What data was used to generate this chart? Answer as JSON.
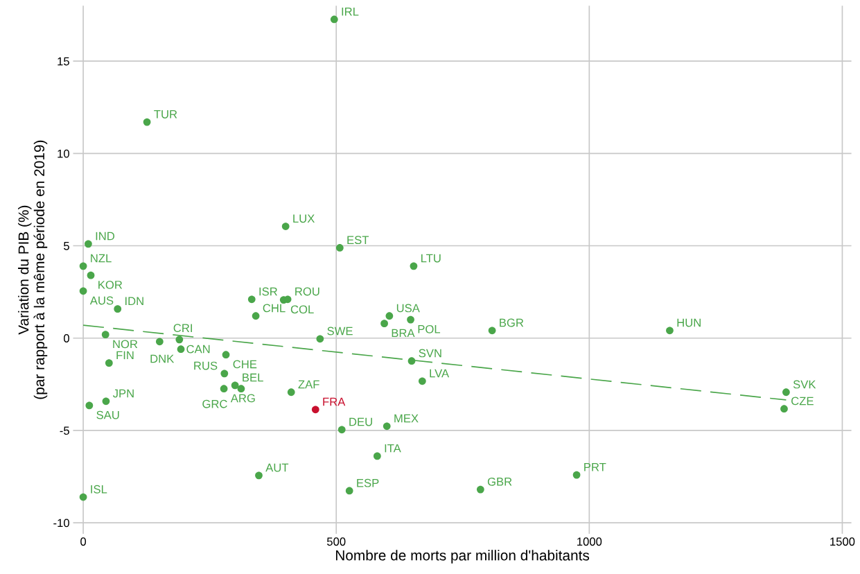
{
  "chart_data": {
    "type": "scatter",
    "xlabel": "Nombre de morts par million d'habitants",
    "ylabel": "Variation du PIB (%)\n(par rapport à la même période en 2019)",
    "xlim": [
      -20,
      1518
    ],
    "ylim": [
      -10.6,
      18
    ],
    "xticks": [
      0,
      500,
      1000,
      1500
    ],
    "yticks": [
      {
        "value": -10,
        "label": "-10"
      },
      {
        "value": -5,
        "label": "-5"
      },
      0,
      5,
      10,
      15
    ],
    "grid": true,
    "marker": "circle",
    "legend": false,
    "series": [
      {
        "color": "#4aa64a",
        "x": [
          496,
          126,
          400,
          507,
          10,
          0,
          15,
          0,
          68,
          44,
          151,
          190,
          193,
          51,
          12,
          45,
          282,
          279,
          278,
          300,
          312,
          333,
          396,
          404,
          341,
          468,
          411,
          595,
          605,
          647,
          649,
          670,
          653,
          808,
          1159,
          1389,
          1385,
          511,
          600,
          581,
          347,
          526,
          785,
          975,
          0
        ],
        "values": [
          17.26,
          11.7,
          6.05,
          4.89,
          5.1,
          3.9,
          3.4,
          2.55,
          1.58,
          0.19,
          -0.19,
          -0.08,
          -0.6,
          -1.35,
          -3.65,
          -3.42,
          -0.9,
          -1.92,
          -2.74,
          -2.56,
          -2.74,
          2.1,
          2.07,
          2.1,
          1.2,
          -0.04,
          -2.93,
          0.79,
          1.2,
          1.0,
          -1.24,
          -2.33,
          3.9,
          0.41,
          0.41,
          -2.93,
          -3.83,
          -4.96,
          -4.77,
          -6.39,
          -7.44,
          -8.27,
          -8.2,
          -7.41,
          -8.61
        ]
      },
      {
        "color": "#c8102e",
        "x": [
          459
        ],
        "values": [
          -3.87
        ]
      },
      {
        "type": "line",
        "color": "#4aa64a",
        "line_style": "dashed",
        "marker": "none",
        "x": [
          0,
          1389
        ],
        "values": [
          0.7,
          -3.35
        ]
      }
    ],
    "annotations": [
      {
        "text": "IRL",
        "x": 496,
        "y": 17.26
      },
      {
        "text": "TUR",
        "x": 126,
        "y": 11.7
      },
      {
        "text": "LUX",
        "x": 400,
        "y": 6.05
      },
      {
        "text": "EST",
        "x": 507,
        "y": 4.89
      },
      {
        "text": "IND",
        "x": 10,
        "y": 5.1
      },
      {
        "text": "NZL",
        "x": 0,
        "y": 3.9
      },
      {
        "text": "KOR",
        "x": 15,
        "y": 3.4
      },
      {
        "text": "AUS",
        "x": 0,
        "y": 2.55
      },
      {
        "text": "IDN",
        "x": 68,
        "y": 1.58
      },
      {
        "text": "NOR",
        "x": 44,
        "y": 0.19
      },
      {
        "text": "CRI",
        "x": 151,
        "y": -0.19
      },
      {
        "text": "CAN",
        "x": 190,
        "y": -0.08
      },
      {
        "text": "DNK",
        "x": 193,
        "y": -0.6
      },
      {
        "text": "FIN",
        "x": 51,
        "y": -1.35
      },
      {
        "text": "SAU",
        "x": 12,
        "y": -3.65
      },
      {
        "text": "JPN",
        "x": 45,
        "y": -3.42
      },
      {
        "text": "CHE",
        "x": 282,
        "y": -0.9
      },
      {
        "text": "RUS",
        "x": 279,
        "y": -1.92
      },
      {
        "text": "ARG",
        "x": 278,
        "y": -2.74
      },
      {
        "text": "BEL",
        "x": 300,
        "y": -2.56
      },
      {
        "text": "GRC",
        "x": 312,
        "y": -2.74
      },
      {
        "text": "ISR",
        "x": 333,
        "y": 2.1
      },
      {
        "text": "COL",
        "x": 396,
        "y": 2.07
      },
      {
        "text": "ROU",
        "x": 404,
        "y": 2.1
      },
      {
        "text": "CHL",
        "x": 341,
        "y": 1.2
      },
      {
        "text": "SWE",
        "x": 468,
        "y": -0.04
      },
      {
        "text": "ZAF",
        "x": 411,
        "y": -2.93
      },
      {
        "text": "BRA",
        "x": 595,
        "y": 0.79
      },
      {
        "text": "USA",
        "x": 605,
        "y": 1.2
      },
      {
        "text": "POL",
        "x": 647,
        "y": 1.0
      },
      {
        "text": "SVN",
        "x": 649,
        "y": -1.24
      },
      {
        "text": "LVA",
        "x": 670,
        "y": -2.33
      },
      {
        "text": "LTU",
        "x": 653,
        "y": 3.9
      },
      {
        "text": "BGR",
        "x": 808,
        "y": 0.41
      },
      {
        "text": "HUN",
        "x": 1159,
        "y": 0.41
      },
      {
        "text": "SVK",
        "x": 1389,
        "y": -2.93
      },
      {
        "text": "CZE",
        "x": 1385,
        "y": -3.83
      },
      {
        "text": "DEU",
        "x": 511,
        "y": -4.96
      },
      {
        "text": "MEX",
        "x": 600,
        "y": -4.77
      },
      {
        "text": "ITA",
        "x": 581,
        "y": -6.39
      },
      {
        "text": "AUT",
        "x": 347,
        "y": -7.44
      },
      {
        "text": "ESP",
        "x": 526,
        "y": -8.27
      },
      {
        "text": "GBR",
        "x": 785,
        "y": -8.2
      },
      {
        "text": "PRT",
        "x": 975,
        "y": -7.41
      },
      {
        "text": "ISL",
        "x": 0,
        "y": -8.61
      },
      {
        "text": "FRA",
        "x": 459,
        "y": -3.87
      }
    ]
  }
}
